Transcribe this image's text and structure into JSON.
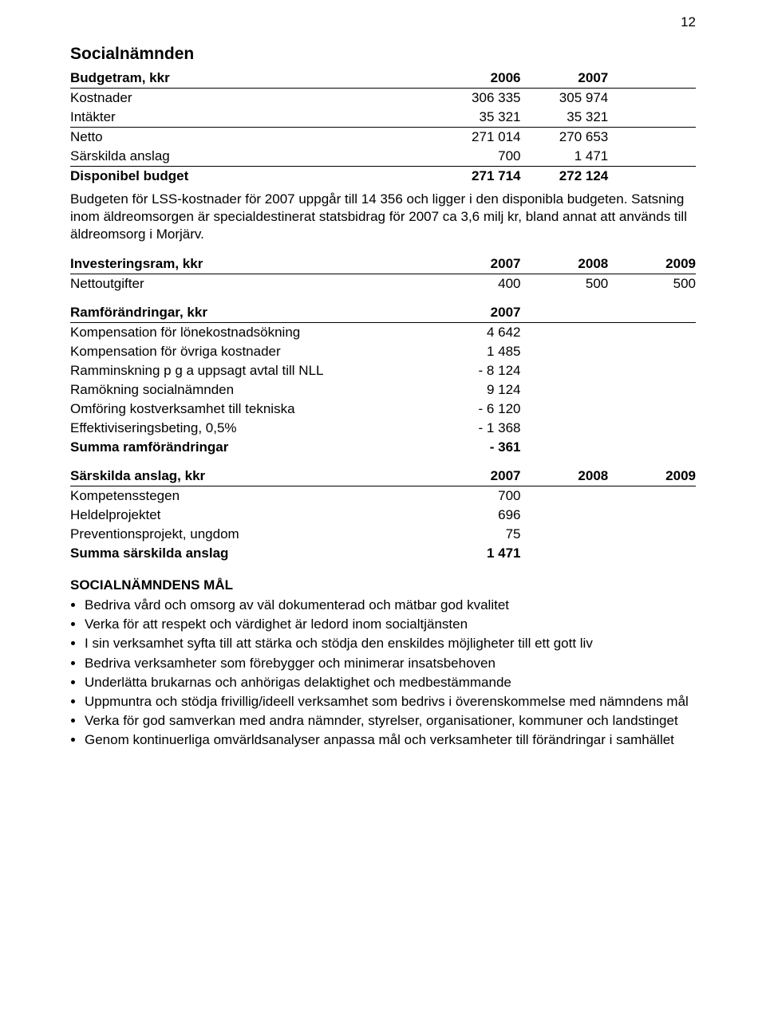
{
  "page_number": "12",
  "title": "Socialnämnden",
  "budgetram": {
    "heading": "Budgetram, kkr",
    "years": [
      "2006",
      "2007"
    ],
    "rows": [
      {
        "label": "Kostnader",
        "v1": "306 335",
        "v2": "305 974"
      },
      {
        "label": "Intäkter",
        "v1": "35 321",
        "v2": "35 321"
      },
      {
        "label": "Netto",
        "v1": "271 014",
        "v2": "270 653"
      },
      {
        "label": "Särskilda anslag",
        "v1": "700",
        "v2": "1 471"
      },
      {
        "label": "Disponibel budget",
        "v1": "271 714",
        "v2": "272 124",
        "bold": true
      }
    ]
  },
  "para1": "Budgeten för LSS-kostnader för 2007 uppgår till 14 356 och ligger i den disponibla budgeten. Satsning inom äldreomsorgen är specialdestinerat statsbidrag för 2007 ca 3,6 milj kr, bland annat att används till äldreomsorg i Morjärv.",
  "investeringsram": {
    "heading": "Investeringsram, kkr",
    "years": [
      "2007",
      "2008",
      "2009"
    ],
    "rows": [
      {
        "label": "Nettoutgifter",
        "v1": "400",
        "v2": "500",
        "v3": "500"
      }
    ]
  },
  "ramforandringar": {
    "heading": "Ramförändringar, kkr",
    "year": "2007",
    "rows": [
      {
        "label": "Kompensation för lönekostnadsökning",
        "v": "4 642"
      },
      {
        "label": "Kompensation för övriga kostnader",
        "v": "1 485"
      },
      {
        "label": "Ramminskning p g a uppsagt avtal till NLL",
        "v": "- 8 124"
      },
      {
        "label": "Ramökning socialnämnden",
        "v": "9 124"
      },
      {
        "label": "Omföring kostverksamhet till tekniska",
        "v": "- 6 120"
      },
      {
        "label": "Effektiviseringsbeting, 0,5%",
        "v": "- 1 368"
      },
      {
        "label": "Summa ramförändringar",
        "v": "- 361",
        "bold": true
      }
    ]
  },
  "sarskilda": {
    "heading": "Särskilda anslag, kkr",
    "years": [
      "2007",
      "2008",
      "2009"
    ],
    "rows": [
      {
        "label": "Kompetensstegen",
        "v": "700"
      },
      {
        "label": "Heldelprojektet",
        "v": "696"
      },
      {
        "label": "Preventionsprojekt, ungdom",
        "v": "75"
      },
      {
        "label": "Summa särskilda anslag",
        "v": "1 471",
        "bold": true
      }
    ]
  },
  "goals": {
    "heading": "SOCIALNÄMNDENS MÅL",
    "items": [
      "Bedriva vård och omsorg av väl dokumenterad och mätbar god kvalitet",
      "Verka för att respekt och värdighet är ledord inom socialtjänsten",
      "I sin verksamhet syfta till att stärka och stödja den enskildes möjligheter till ett gott liv",
      "Bedriva verksamheter som förebygger och minimerar insatsbehoven",
      "Underlätta brukarnas och anhörigas delaktighet och medbestämmande",
      "Uppmuntra och stödja frivillig/ideell verksamhet som bedrivs i överenskommelse med nämndens mål",
      "Verka för god samverkan med andra nämnder, styrelser, organisationer, kommuner och landstinget",
      "Genom kontinuerliga omvärldsanalyser anpassa mål och verksamheter till förändringar i samhället"
    ]
  }
}
